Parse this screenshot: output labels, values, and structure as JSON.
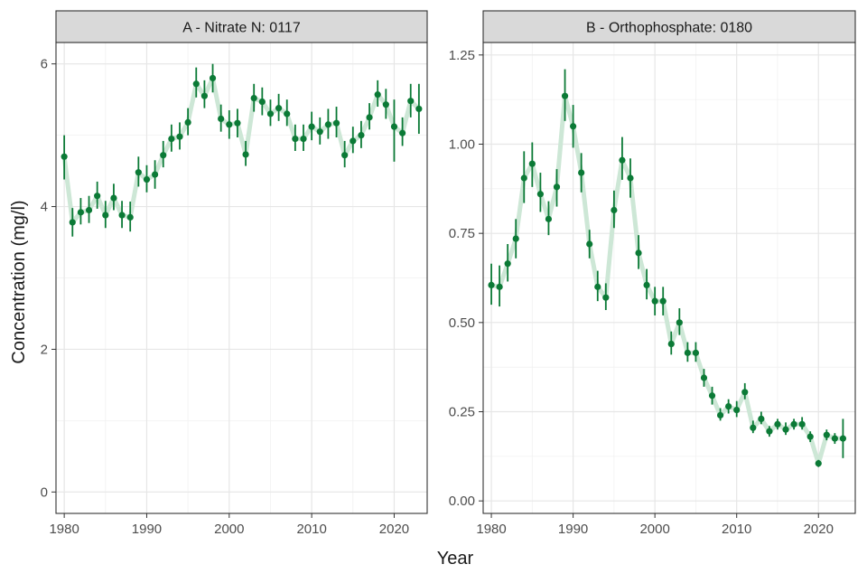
{
  "figure": {
    "ylabel": "Concentration (mg/l)",
    "xlabel": "Year"
  },
  "chart_data": [
    {
      "type": "scatter",
      "title": "A - Nitrate N: 0117",
      "xlim": [
        1979,
        2024
      ],
      "ylim": [
        -0.3,
        6.3
      ],
      "xticks": [
        1980,
        1990,
        2000,
        2010,
        2020
      ],
      "yticks": [
        0,
        2,
        4,
        6
      ],
      "ytick_labels": [
        "0",
        "2",
        "4",
        "6"
      ],
      "grid": true,
      "colors": {
        "point": "#0b7a36",
        "trend": "#cde7d6"
      },
      "series": [
        {
          "x": [
            1980,
            1981,
            1982,
            1983,
            1984,
            1985,
            1986,
            1987,
            1988,
            1989,
            1990,
            1991,
            1992,
            1993,
            1994,
            1995,
            1996,
            1997,
            1998,
            1999,
            2000,
            2001,
            2002,
            2003,
            2004,
            2005,
            2006,
            2007,
            2008,
            2009,
            2010,
            2011,
            2012,
            2013,
            2014,
            2015,
            2016,
            2017,
            2018,
            2019,
            2020,
            2021,
            2022,
            2023
          ],
          "y": [
            4.7,
            3.78,
            3.92,
            3.95,
            4.15,
            3.88,
            4.12,
            3.88,
            3.85,
            4.48,
            4.38,
            4.45,
            4.72,
            4.95,
            4.98,
            5.18,
            5.72,
            5.55,
            5.8,
            5.23,
            5.15,
            5.17,
            4.73,
            5.52,
            5.47,
            5.3,
            5.38,
            5.3,
            4.95,
            4.95,
            5.12,
            5.05,
            5.15,
            5.17,
            4.72,
            4.92,
            5.0,
            5.25,
            5.57,
            5.43,
            5.12,
            5.03,
            5.48,
            5.37
          ],
          "err_low": [
            4.38,
            3.58,
            3.75,
            3.77,
            3.97,
            3.7,
            3.95,
            3.7,
            3.65,
            4.28,
            4.2,
            4.25,
            4.55,
            4.77,
            4.8,
            5.0,
            5.53,
            5.38,
            5.6,
            5.05,
            4.95,
            4.97,
            4.57,
            5.33,
            5.28,
            5.13,
            5.2,
            5.13,
            4.78,
            4.78,
            4.93,
            4.87,
            4.95,
            4.97,
            4.55,
            4.75,
            4.82,
            5.08,
            5.4,
            5.23,
            4.63,
            4.85,
            5.25,
            5.02
          ],
          "err_high": [
            5.0,
            3.98,
            4.12,
            4.15,
            4.35,
            4.08,
            4.32,
            4.08,
            4.07,
            4.7,
            4.58,
            4.65,
            4.92,
            5.15,
            5.18,
            5.38,
            5.95,
            5.77,
            6.0,
            5.43,
            5.35,
            5.37,
            4.92,
            5.72,
            5.67,
            5.5,
            5.58,
            5.5,
            5.15,
            5.15,
            5.33,
            5.25,
            5.37,
            5.4,
            4.92,
            5.12,
            5.2,
            5.45,
            5.77,
            5.65,
            5.5,
            5.25,
            5.72,
            5.72
          ],
          "trend": [
            4.7,
            3.78,
            3.92,
            3.95,
            4.15,
            3.88,
            4.12,
            3.88,
            3.85,
            4.48,
            4.38,
            4.45,
            4.72,
            4.95,
            4.98,
            5.18,
            5.72,
            5.55,
            5.8,
            5.23,
            5.15,
            5.17,
            4.73,
            5.52,
            5.47,
            5.3,
            5.38,
            5.3,
            4.95,
            4.95,
            5.12,
            5.05,
            5.15,
            5.17,
            4.72,
            4.92,
            5.0,
            5.25,
            5.57,
            5.43,
            5.12,
            5.03,
            5.48,
            5.37
          ]
        }
      ]
    },
    {
      "type": "scatter",
      "title": "B - Orthophosphate: 0180",
      "xlim": [
        1979,
        2024.5
      ],
      "ylim": [
        -0.035,
        1.285
      ],
      "xticks": [
        1980,
        1990,
        2000,
        2010,
        2020
      ],
      "yticks": [
        0,
        0.25,
        0.5,
        0.75,
        1.0,
        1.25
      ],
      "ytick_labels": [
        "0.00",
        "0.25",
        "0.50",
        "0.75",
        "1.00",
        "1.25"
      ],
      "grid": true,
      "colors": {
        "point": "#0b7a36",
        "trend": "#cde7d6"
      },
      "series": [
        {
          "x": [
            1980,
            1981,
            1982,
            1983,
            1984,
            1985,
            1986,
            1987,
            1988,
            1989,
            1990,
            1991,
            1992,
            1993,
            1994,
            1995,
            1996,
            1997,
            1998,
            1999,
            2000,
            2001,
            2002,
            2003,
            2004,
            2005,
            2006,
            2007,
            2008,
            2009,
            2010,
            2011,
            2012,
            2013,
            2014,
            2015,
            2016,
            2017,
            2018,
            2019,
            2020,
            2021,
            2022,
            2023
          ],
          "y": [
            0.605,
            0.6,
            0.665,
            0.735,
            0.905,
            0.945,
            0.86,
            0.79,
            0.88,
            1.135,
            1.05,
            0.92,
            0.72,
            0.6,
            0.57,
            0.815,
            0.955,
            0.905,
            0.695,
            0.605,
            0.56,
            0.56,
            0.44,
            0.5,
            0.415,
            0.415,
            0.345,
            0.295,
            0.24,
            0.265,
            0.255,
            0.305,
            0.205,
            0.23,
            0.195,
            0.215,
            0.2,
            0.215,
            0.215,
            0.18,
            0.105,
            0.185,
            0.175,
            0.175
          ],
          "err_low": [
            0.55,
            0.545,
            0.615,
            0.68,
            0.835,
            0.88,
            0.81,
            0.745,
            0.825,
            1.065,
            0.99,
            0.865,
            0.68,
            0.56,
            0.535,
            0.765,
            0.9,
            0.85,
            0.65,
            0.565,
            0.52,
            0.52,
            0.41,
            0.465,
            0.39,
            0.39,
            0.32,
            0.27,
            0.225,
            0.245,
            0.235,
            0.285,
            0.19,
            0.215,
            0.18,
            0.2,
            0.185,
            0.2,
            0.2,
            0.165,
            0.095,
            0.17,
            0.16,
            0.12
          ],
          "err_high": [
            0.665,
            0.66,
            0.72,
            0.79,
            0.98,
            1.005,
            0.92,
            0.84,
            0.93,
            1.21,
            1.11,
            0.975,
            0.76,
            0.645,
            0.61,
            0.87,
            1.02,
            0.96,
            0.745,
            0.65,
            0.6,
            0.6,
            0.475,
            0.54,
            0.445,
            0.445,
            0.37,
            0.32,
            0.26,
            0.285,
            0.28,
            0.33,
            0.225,
            0.25,
            0.21,
            0.23,
            0.22,
            0.23,
            0.235,
            0.195,
            0.115,
            0.2,
            0.19,
            0.23
          ],
          "trend": [
            0.605,
            0.6,
            0.665,
            0.735,
            0.905,
            0.945,
            0.86,
            0.79,
            0.88,
            1.135,
            1.05,
            0.92,
            0.72,
            0.6,
            0.57,
            0.815,
            0.955,
            0.905,
            0.695,
            0.605,
            0.56,
            0.56,
            0.44,
            0.5,
            0.415,
            0.415,
            0.345,
            0.295,
            0.24,
            0.265,
            0.255,
            0.305,
            0.205,
            0.23,
            0.195,
            0.215,
            0.2,
            0.215,
            0.215,
            0.18,
            0.105,
            0.185,
            0.175,
            0.175
          ]
        }
      ]
    }
  ]
}
